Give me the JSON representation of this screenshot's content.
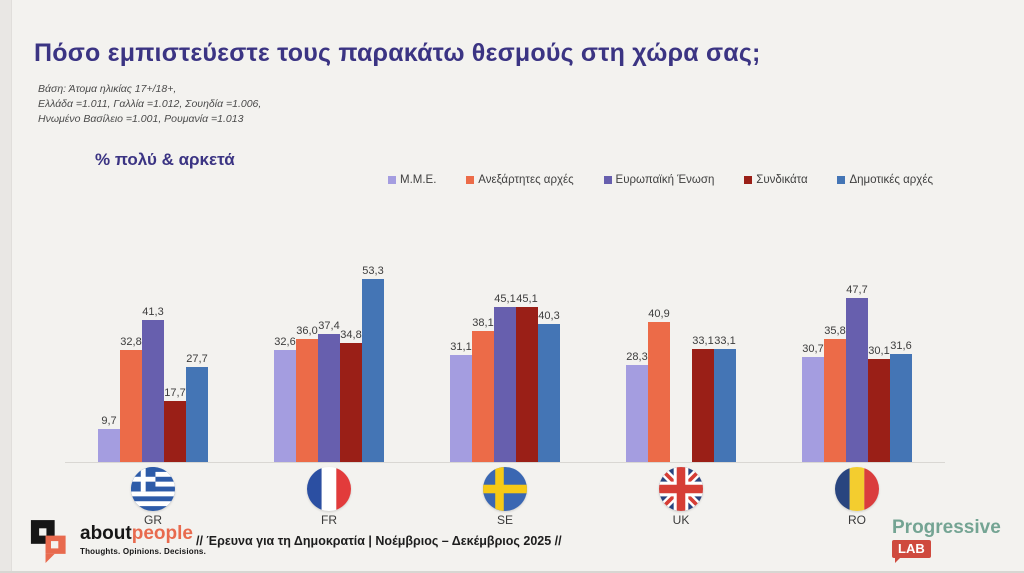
{
  "slide": {
    "title": "Πόσο εμπιστεύεστε τους παρακάτω θεσμούς στη χώρα σας;",
    "base_note_lines": [
      "Βάση: Άτομα ηλικίας 17+/18+,",
      "Ελλάδα =1.011, Γαλλία =1.012, Σουηδία =1.006,",
      "Ηνωμένο Βασίλειο =1.001, Ρουμανία =1.013"
    ],
    "metric_label": "% πολύ & αρκετά"
  },
  "chart_data": {
    "type": "bar",
    "title": "Πόσο εμπιστεύεστε τους παρακάτω θεσμούς στη χώρα σας;",
    "subtitle": "% πολύ & αρκετά",
    "unit": "%",
    "ylim": [
      0,
      58
    ],
    "grid": false,
    "legend_position": "top",
    "categories": [
      "GR",
      "FR",
      "SE",
      "UK",
      "RO"
    ],
    "series": [
      {
        "name": "Μ.Μ.Ε.",
        "color": "#a49de0",
        "values": [
          9.7,
          32.6,
          31.1,
          28.3,
          30.7
        ],
        "labels": [
          "9,7",
          "32,6",
          "31,1",
          "28,3",
          "30,7"
        ]
      },
      {
        "name": "Ανεξάρτητες αρχές",
        "color": "#ec6b48",
        "values": [
          32.8,
          36.0,
          38.1,
          40.9,
          35.8
        ],
        "labels": [
          "32,8",
          "36,0",
          "38,1",
          "40,9",
          "35,8"
        ]
      },
      {
        "name": "Ευρωπαϊκή Ένωση",
        "color": "#675fae",
        "values": [
          41.3,
          37.4,
          45.1,
          null,
          47.7
        ],
        "labels": [
          "41,3",
          "37,4",
          "45,1",
          "",
          "47,7"
        ]
      },
      {
        "name": "Συνδικάτα",
        "color": "#9a1f17",
        "values": [
          17.7,
          34.8,
          45.1,
          33.1,
          30.1
        ],
        "labels": [
          "17,7",
          "34,8",
          "45,1",
          "33,1",
          "30,1"
        ]
      },
      {
        "name": "Δημοτικές αρχές",
        "color": "#4475b5",
        "values": [
          27.7,
          53.3,
          40.3,
          33.1,
          31.6
        ],
        "labels": [
          "27,7",
          "53,3",
          "40,3",
          "33,1",
          "31,6"
        ]
      }
    ]
  },
  "footer": {
    "brand": {
      "name_black": "about",
      "name_accent": "people",
      "tagline": "Thoughts. Opinions. Decisions."
    },
    "survey_note": "// Έρευνα για τη Δημοκρατία | Νοέμβριος – Δεκέμβριος 2025 //",
    "partner": {
      "name": "Progressive",
      "badge": "LAB"
    }
  },
  "colors": {
    "background": "#f3f2ef",
    "title": "#3b3483",
    "brand_accent": "#e86a4e",
    "partner_green": "#74a493",
    "partner_badge_red": "#cf4a3e"
  }
}
